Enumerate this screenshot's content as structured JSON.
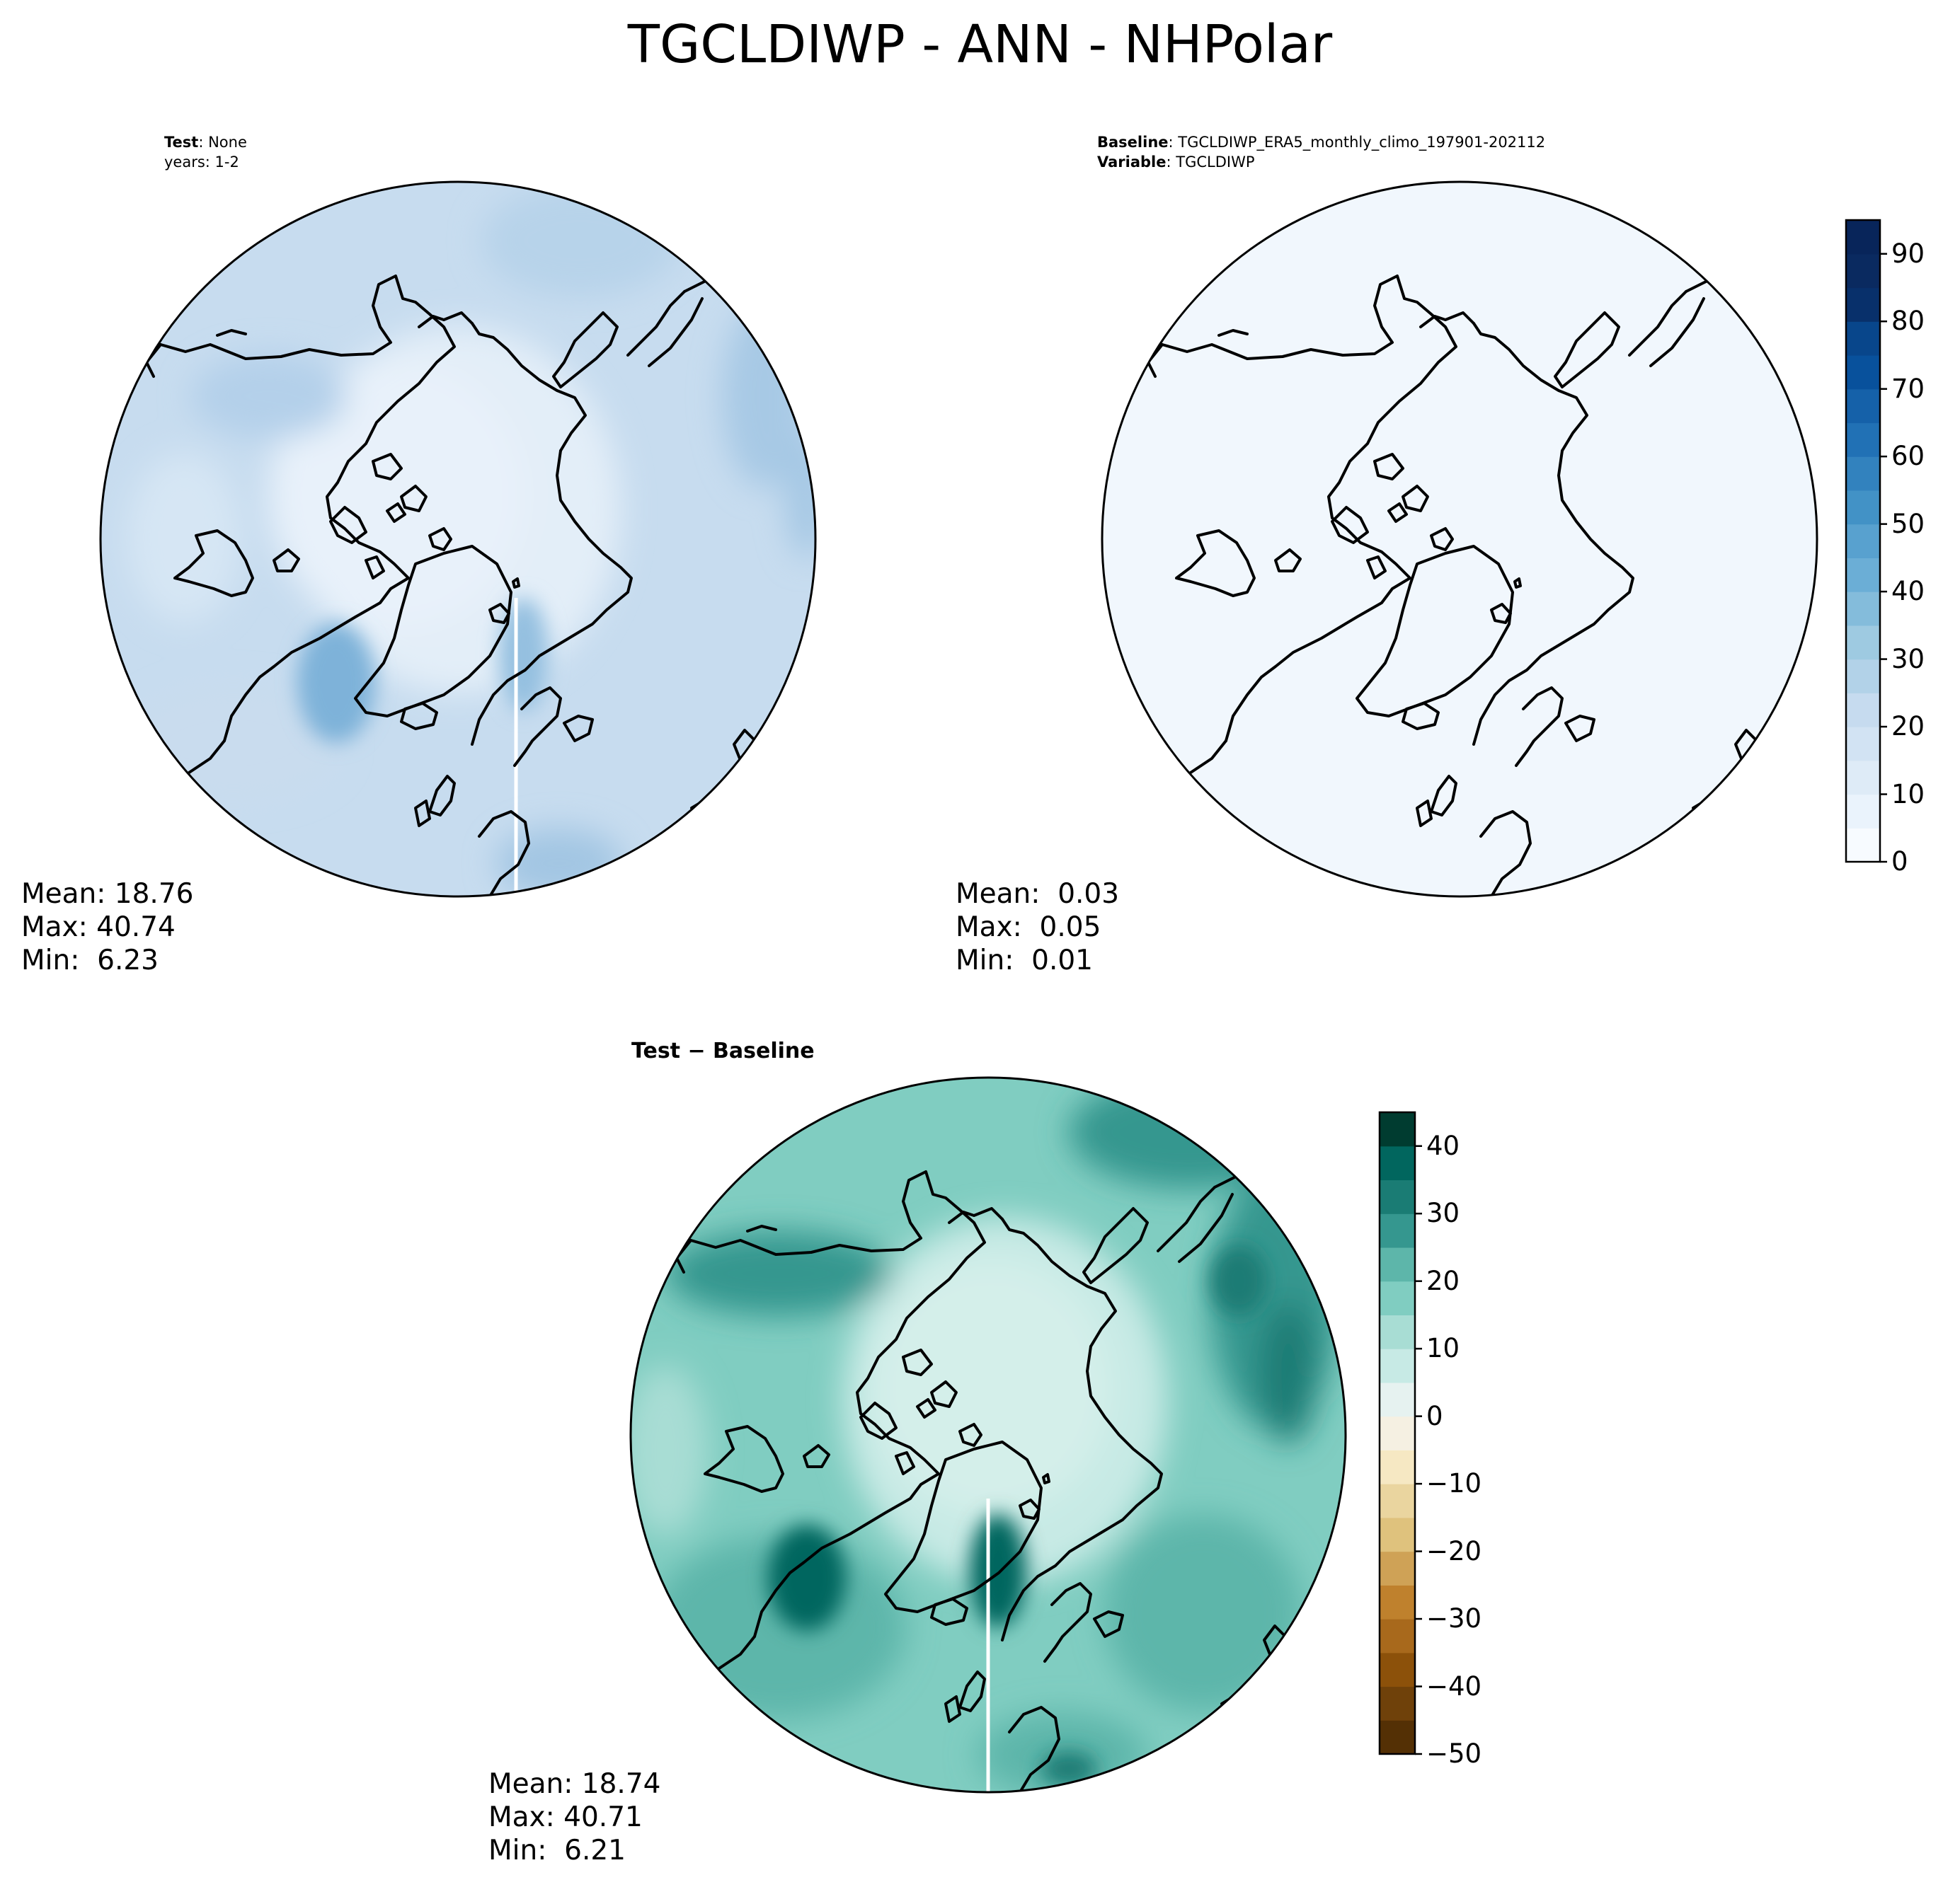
{
  "title": "TGCLDIWP - ANN - NHPolar",
  "test_panel": {
    "header_key": "Test",
    "header_sep": ": ",
    "header_value": "None",
    "years": "years: 1-2",
    "mean": "Mean: 18.76",
    "max": "Max: 40.74",
    "min": "Min:  6.23"
  },
  "baseline_panel": {
    "header_key": "Baseline",
    "header_sep": ": ",
    "header_value": "TGCLDIWP_ERA5_monthly_climo_197901-202112",
    "variable_key": "Variable",
    "variable_value": "TGCLDIWP",
    "mean": "Mean:  0.03",
    "max": "Max:  0.05",
    "min": "Min:  0.01"
  },
  "diff_panel": {
    "header": "Test − Baseline",
    "mean": "Mean: 18.74",
    "max": "Max: 40.71",
    "min": "Min:  6.21"
  },
  "colorbar_top": {
    "ticks": [
      "0",
      "10",
      "20",
      "30",
      "40",
      "50",
      "60",
      "70",
      "80",
      "90"
    ],
    "tick_values": [
      0,
      10,
      20,
      30,
      40,
      50,
      60,
      70,
      80,
      90
    ],
    "range": [
      0,
      95
    ],
    "levels": 19,
    "colormap": "Blues",
    "colors": [
      "#f7fbff",
      "#eaf3fc",
      "#deebf7",
      "#d2e3f3",
      "#c6dbef",
      "#b2d2e8",
      "#9ecae1",
      "#84bcdb",
      "#6baed6",
      "#58a1cf",
      "#4292c6",
      "#3282be",
      "#2171b5",
      "#1561a9",
      "#08519c",
      "#08468b",
      "#08306b",
      "#0a2a60",
      "#08255a"
    ]
  },
  "colorbar_diff": {
    "ticks": [
      "40",
      "30",
      "20",
      "10",
      "0",
      "−10",
      "−20",
      "−30",
      "−40",
      "−50"
    ],
    "tick_values": [
      40,
      30,
      20,
      10,
      0,
      -10,
      -20,
      -30,
      -40,
      -50
    ],
    "range": [
      -50,
      45
    ],
    "levels": 19,
    "colormap": "BrBG",
    "colors": [
      "#543005",
      "#6f410a",
      "#8c510a",
      "#a8691c",
      "#bf812d",
      "#cfa256",
      "#dfc27d",
      "#ead59f",
      "#f6e8c3",
      "#f5f0e2",
      "#e6f2f0",
      "#c7eae5",
      "#a8ddd4",
      "#80cdc1",
      "#5db6aa",
      "#35978f",
      "#1a7c74",
      "#01665e",
      "#003c30"
    ]
  }
}
